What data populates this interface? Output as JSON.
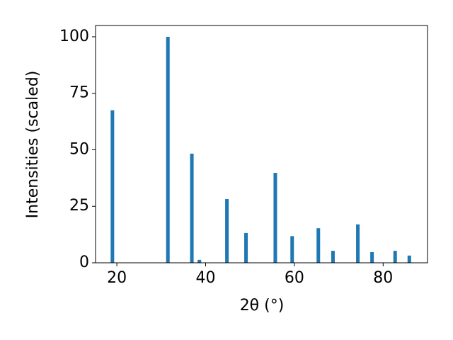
{
  "chart_data": {
    "type": "bar",
    "x_label": "2θ (°)",
    "y_label": "Intensities (scaled)",
    "x": [
      19.0,
      31.5,
      36.9,
      38.6,
      44.8,
      49.1,
      55.7,
      59.5,
      65.4,
      68.7,
      74.3,
      77.5,
      82.7,
      85.9
    ],
    "values": [
      67.5,
      100,
      48.3,
      1.3,
      28.2,
      13.2,
      39.8,
      11.8,
      15.3,
      5.3,
      17.0,
      4.7,
      5.3,
      3.2
    ],
    "color": "#1f77b4",
    "xlim": [
      15.2,
      90
    ],
    "ylim": [
      0,
      105
    ],
    "xticks": [
      20,
      40,
      60,
      80
    ],
    "yticks": [
      0,
      25,
      50,
      75,
      100
    ]
  }
}
